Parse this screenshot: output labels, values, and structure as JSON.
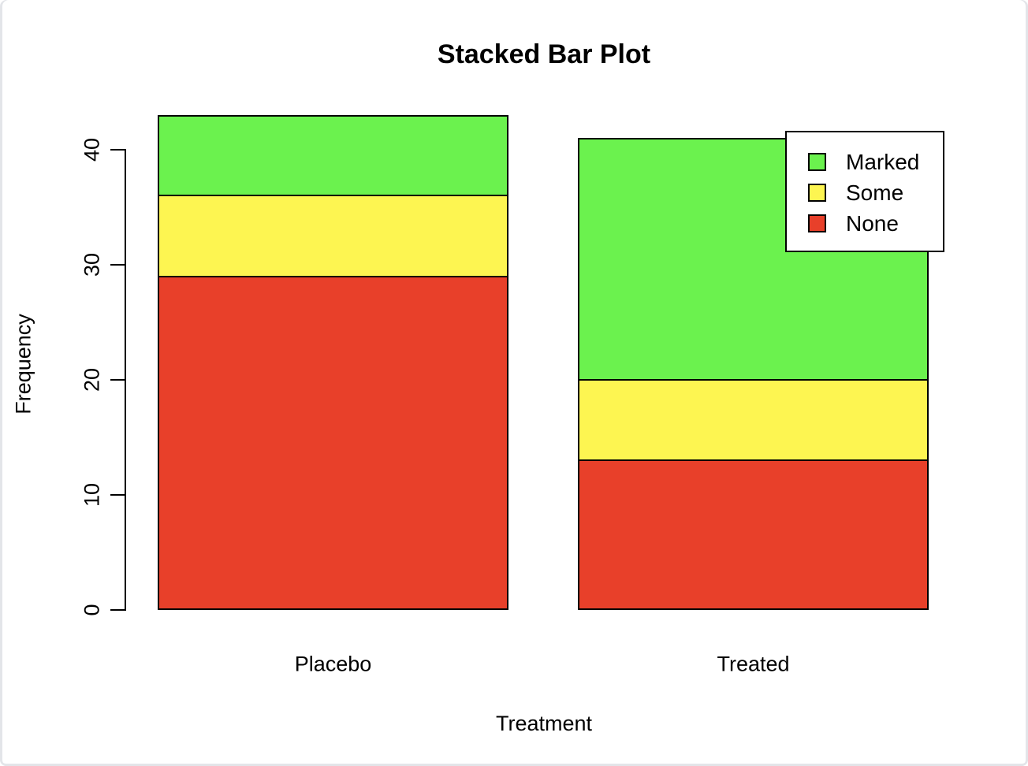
{
  "chart_data": {
    "type": "bar",
    "stacked": true,
    "title": "Stacked Bar Plot",
    "xlabel": "Treatment",
    "ylabel": "Frequency",
    "categories": [
      "Placebo",
      "Treated"
    ],
    "series": [
      {
        "name": "None",
        "color": "#E8402A",
        "values": [
          29,
          13
        ]
      },
      {
        "name": "Some",
        "color": "#FDF551",
        "values": [
          7,
          7
        ]
      },
      {
        "name": "Marked",
        "color": "#6BF24E",
        "values": [
          7,
          21
        ]
      }
    ],
    "stack_order_bottom_to_top": [
      "None",
      "Some",
      "Marked"
    ],
    "totals": {
      "Placebo": 43,
      "Treated": 41
    },
    "yticks": [
      0,
      10,
      20,
      30,
      40
    ],
    "ylim": [
      0,
      43
    ],
    "grid": false,
    "legend": {
      "position": "top-right",
      "entries": [
        "Marked",
        "Some",
        "None"
      ]
    },
    "bar_border_color": "#000000",
    "background": "#FFFFFF"
  }
}
